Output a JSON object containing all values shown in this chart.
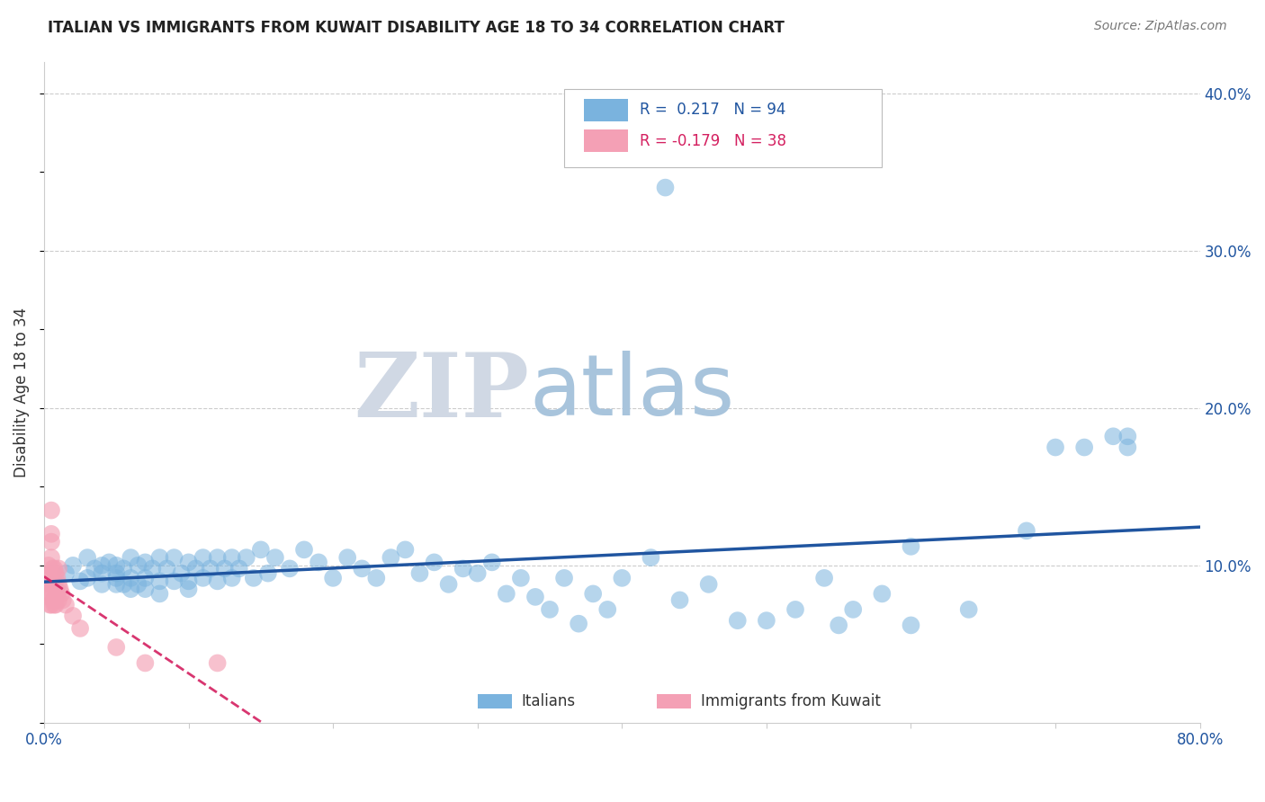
{
  "title": "ITALIAN VS IMMIGRANTS FROM KUWAIT DISABILITY AGE 18 TO 34 CORRELATION CHART",
  "source": "Source: ZipAtlas.com",
  "ylabel": "Disability Age 18 to 34",
  "xlim": [
    0.0,
    0.8
  ],
  "ylim": [
    0.0,
    0.42
  ],
  "xticks": [
    0.0,
    0.1,
    0.2,
    0.3,
    0.4,
    0.5,
    0.6,
    0.7,
    0.8
  ],
  "xticklabels": [
    "0.0%",
    "",
    "",
    "",
    "",
    "",
    "",
    "",
    "80.0%"
  ],
  "yticks_right": [
    0.1,
    0.2,
    0.3,
    0.4
  ],
  "yticklabels_right": [
    "10.0%",
    "20.0%",
    "30.0%",
    "40.0%"
  ],
  "blue_color": "#7ab3de",
  "pink_color": "#f4a0b5",
  "blue_line_color": "#2055a0",
  "pink_line_color": "#d42060",
  "legend_R1": "R =  0.217",
  "legend_N1": "N = 94",
  "legend_R2": "R = -0.179",
  "legend_N2": "N = 38",
  "watermark_zip": "ZIP",
  "watermark_atlas": "atlas",
  "watermark_zip_color": "#d0d8e4",
  "watermark_atlas_color": "#a8c4dc",
  "grid_color": "#cccccc",
  "background_color": "#ffffff",
  "blue_scatter_x": [
    0.015,
    0.02,
    0.025,
    0.03,
    0.03,
    0.035,
    0.04,
    0.04,
    0.04,
    0.045,
    0.05,
    0.05,
    0.05,
    0.05,
    0.055,
    0.055,
    0.06,
    0.06,
    0.06,
    0.065,
    0.065,
    0.07,
    0.07,
    0.07,
    0.075,
    0.08,
    0.08,
    0.08,
    0.085,
    0.09,
    0.09,
    0.095,
    0.1,
    0.1,
    0.1,
    0.105,
    0.11,
    0.11,
    0.115,
    0.12,
    0.12,
    0.125,
    0.13,
    0.13,
    0.135,
    0.14,
    0.145,
    0.15,
    0.155,
    0.16,
    0.17,
    0.18,
    0.19,
    0.2,
    0.21,
    0.22,
    0.23,
    0.24,
    0.25,
    0.26,
    0.27,
    0.28,
    0.29,
    0.3,
    0.31,
    0.32,
    0.33,
    0.34,
    0.35,
    0.36,
    0.37,
    0.38,
    0.39,
    0.4,
    0.42,
    0.44,
    0.46,
    0.48,
    0.5,
    0.52,
    0.54,
    0.56,
    0.58,
    0.6,
    0.43,
    0.55,
    0.6,
    0.64,
    0.68,
    0.7,
    0.72,
    0.74,
    0.75,
    0.75
  ],
  "blue_scatter_y": [
    0.095,
    0.1,
    0.09,
    0.105,
    0.092,
    0.098,
    0.1,
    0.088,
    0.095,
    0.102,
    0.095,
    0.088,
    0.1,
    0.092,
    0.098,
    0.088,
    0.105,
    0.092,
    0.085,
    0.1,
    0.088,
    0.102,
    0.092,
    0.085,
    0.098,
    0.105,
    0.09,
    0.082,
    0.098,
    0.105,
    0.09,
    0.095,
    0.102,
    0.09,
    0.085,
    0.098,
    0.105,
    0.092,
    0.098,
    0.105,
    0.09,
    0.098,
    0.105,
    0.092,
    0.098,
    0.105,
    0.092,
    0.11,
    0.095,
    0.105,
    0.098,
    0.11,
    0.102,
    0.092,
    0.105,
    0.098,
    0.092,
    0.105,
    0.11,
    0.095,
    0.102,
    0.088,
    0.098,
    0.095,
    0.102,
    0.082,
    0.092,
    0.08,
    0.072,
    0.092,
    0.063,
    0.082,
    0.072,
    0.092,
    0.105,
    0.078,
    0.088,
    0.065,
    0.065,
    0.072,
    0.092,
    0.072,
    0.082,
    0.112,
    0.34,
    0.062,
    0.062,
    0.072,
    0.122,
    0.175,
    0.175,
    0.182,
    0.175,
    0.182
  ],
  "pink_scatter_x": [
    0.003,
    0.003,
    0.004,
    0.004,
    0.004,
    0.005,
    0.005,
    0.005,
    0.005,
    0.005,
    0.006,
    0.006,
    0.006,
    0.007,
    0.007,
    0.007,
    0.008,
    0.008,
    0.008,
    0.009,
    0.009,
    0.01,
    0.01,
    0.01,
    0.011,
    0.012,
    0.013,
    0.015,
    0.02,
    0.025,
    0.05,
    0.07,
    0.12,
    0.005,
    0.005,
    0.006,
    0.006,
    0.007
  ],
  "pink_scatter_y": [
    0.1,
    0.088,
    0.095,
    0.082,
    0.075,
    0.12,
    0.105,
    0.095,
    0.085,
    0.075,
    0.098,
    0.088,
    0.078,
    0.098,
    0.088,
    0.078,
    0.095,
    0.085,
    0.075,
    0.092,
    0.082,
    0.098,
    0.088,
    0.078,
    0.085,
    0.082,
    0.078,
    0.075,
    0.068,
    0.06,
    0.048,
    0.038,
    0.038,
    0.135,
    0.115,
    0.092,
    0.082,
    0.075
  ],
  "pink_trend_x_start": 0.0,
  "pink_trend_x_end": 0.25,
  "blue_trend_x_start": 0.0,
  "blue_trend_x_end": 0.8
}
